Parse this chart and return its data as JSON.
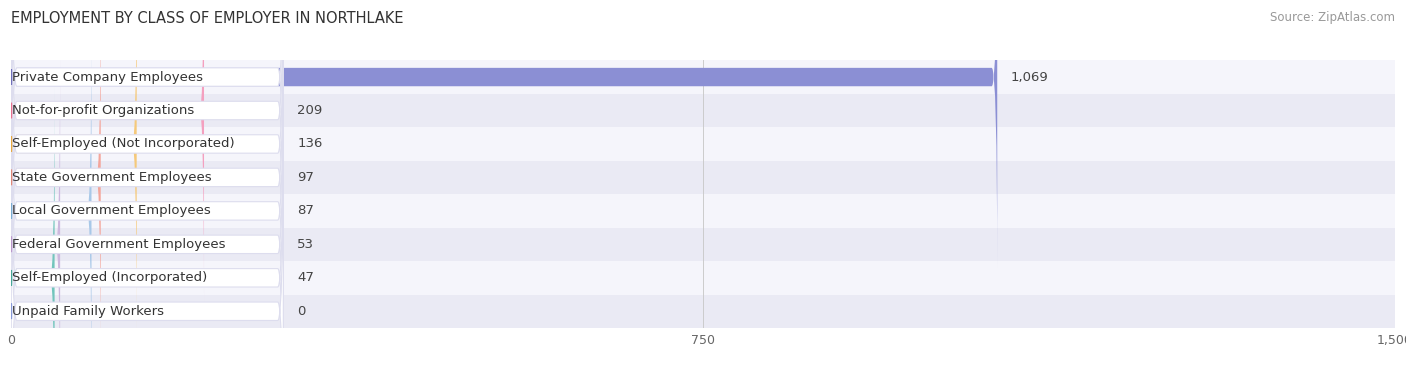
{
  "title": "EMPLOYMENT BY CLASS OF EMPLOYER IN NORTHLAKE",
  "source": "Source: ZipAtlas.com",
  "categories": [
    "Private Company Employees",
    "Not-for-profit Organizations",
    "Self-Employed (Not Incorporated)",
    "State Government Employees",
    "Local Government Employees",
    "Federal Government Employees",
    "Self-Employed (Incorporated)",
    "Unpaid Family Workers"
  ],
  "values": [
    1069,
    209,
    136,
    97,
    87,
    53,
    47,
    0
  ],
  "bar_colors": [
    "#8b8fd4",
    "#f4a0bf",
    "#f5c97a",
    "#f4a59a",
    "#a8c8e8",
    "#cdb8de",
    "#72c5bc",
    "#b3c2f0"
  ],
  "icon_colors": [
    "#7070bb",
    "#e87090",
    "#e8a840",
    "#e08878",
    "#7aaed4",
    "#bb98cc",
    "#48a89a",
    "#8899d8"
  ],
  "row_bg_even": "#f5f5fb",
  "row_bg_odd": "#eaeaf4",
  "label_pill_color": "#ffffff",
  "label_pill_edge": "#ddddee",
  "xlim_max": 1500,
  "xticks": [
    0,
    750,
    1500
  ],
  "title_fontsize": 10.5,
  "label_fontsize": 9.5,
  "value_fontsize": 9.5,
  "source_fontsize": 8.5
}
